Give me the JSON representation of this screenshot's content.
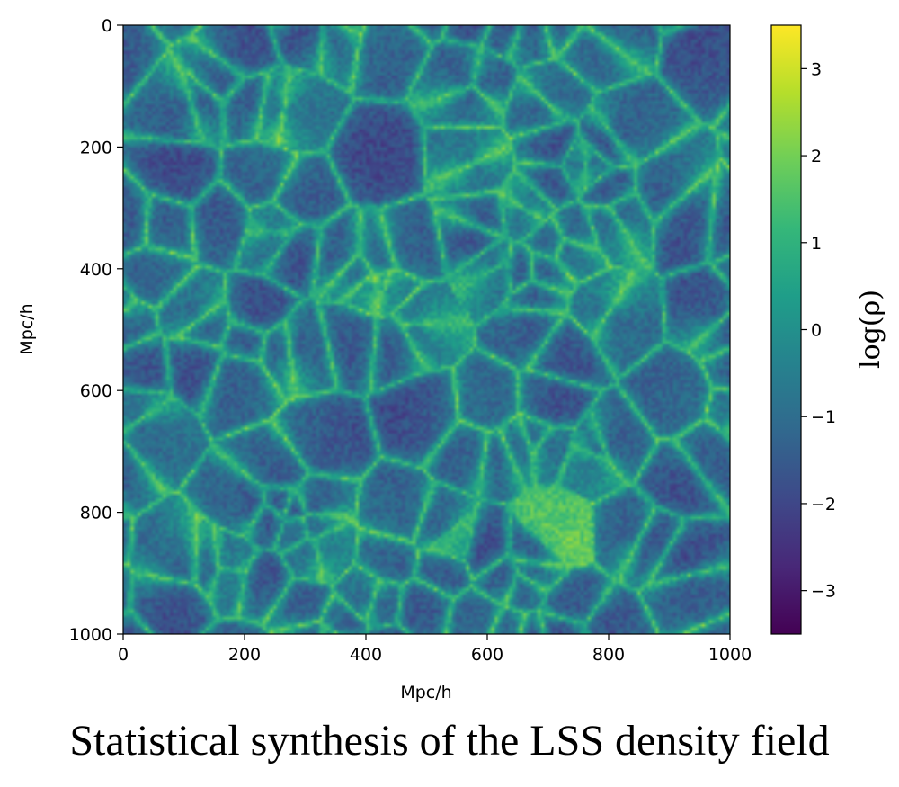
{
  "caption": "Statistical synthesis of the LSS density field",
  "chart_data": {
    "type": "heatmap",
    "title": "",
    "xlabel": "Mpc/h",
    "ylabel": "Mpc/h",
    "xlim": [
      0,
      1000
    ],
    "ylim": [
      1000,
      0
    ],
    "x_ticks": [
      "0",
      "200",
      "400",
      "600",
      "800",
      "1000"
    ],
    "x_tick_values": [
      0,
      200,
      400,
      600,
      800,
      1000
    ],
    "y_ticks": [
      "0",
      "200",
      "400",
      "600",
      "800",
      "1000"
    ],
    "y_tick_values": [
      0,
      200,
      400,
      600,
      800,
      1000
    ],
    "colormap": "viridis",
    "colorbar": {
      "label": "log(ρ)",
      "range": [
        -3.5,
        3.5
      ],
      "ticks": [
        "3",
        "2",
        "1",
        "0",
        "−1",
        "−2",
        "−3"
      ],
      "tick_values": [
        3,
        2,
        1,
        0,
        -1,
        -2,
        -3
      ],
      "colors": [
        "#440154",
        "#482878",
        "#3e4989",
        "#31688e",
        "#26828e",
        "#1f9e89",
        "#35b779",
        "#6ece58",
        "#b5de2b",
        "#fde725"
      ]
    }
  }
}
